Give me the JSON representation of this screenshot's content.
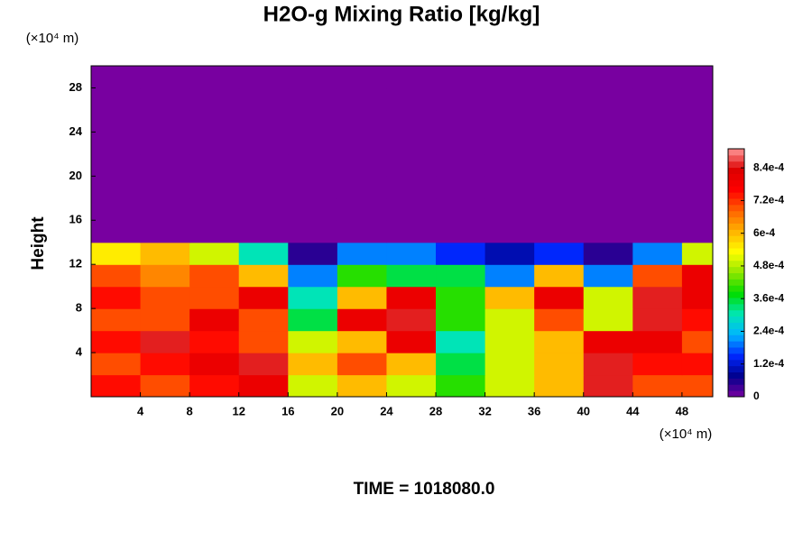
{
  "chart_data": {
    "type": "heatmap",
    "title": "H2O-g Mixing Ratio [kg/kg]",
    "y_label": "Height",
    "x_unit": "(×10⁴ m)",
    "y_unit": "(×10⁴ m)",
    "annotation": "TIME = 1018080.0",
    "x": [
      2,
      6,
      10,
      14,
      18,
      22,
      26,
      30,
      34,
      38,
      42,
      46,
      50
    ],
    "y": [
      1,
      3,
      5,
      7,
      9,
      11,
      13,
      15,
      17,
      19,
      21,
      23,
      25,
      27,
      29
    ],
    "z": [
      [
        0.00075,
        0.0007,
        0.00075,
        0.0008,
        0.0005,
        0.0006,
        0.0005,
        0.0004,
        0.0005,
        0.0006,
        0.00085,
        0.0007,
        0.0007
      ],
      [
        0.0007,
        0.00075,
        0.0008,
        0.00085,
        0.0006,
        0.0007,
        0.0006,
        0.00035,
        0.0005,
        0.0006,
        0.00085,
        0.00075,
        0.00075
      ],
      [
        0.00075,
        0.00085,
        0.00075,
        0.0007,
        0.0005,
        0.0006,
        0.0008,
        0.0003,
        0.0005,
        0.0006,
        0.0008,
        0.0008,
        0.0007
      ],
      [
        0.0007,
        0.0007,
        0.0008,
        0.0007,
        0.00035,
        0.0008,
        0.00085,
        0.0004,
        0.0005,
        0.0007,
        0.0005,
        0.00085,
        0.00075
      ],
      [
        0.00075,
        0.0007,
        0.0007,
        0.0008,
        0.0003,
        0.0006,
        0.0008,
        0.0004,
        0.0006,
        0.0008,
        0.0005,
        0.00085,
        0.0008
      ],
      [
        0.0007,
        0.00065,
        0.0007,
        0.0006,
        0.0002,
        0.0004,
        0.00035,
        0.00035,
        0.0002,
        0.0006,
        0.0002,
        0.0007,
        0.0008
      ],
      [
        0.00055,
        0.0006,
        0.0005,
        0.0003,
        5e-05,
        0.0002,
        0.0002,
        0.00015,
        0.0001,
        0.00015,
        5e-05,
        0.0002,
        0.0005
      ],
      [
        0,
        0,
        0,
        0,
        0,
        0,
        0,
        0,
        0,
        0,
        0,
        0,
        0
      ],
      [
        0,
        0,
        0,
        0,
        0,
        0,
        0,
        0,
        0,
        0,
        0,
        0,
        0
      ],
      [
        0,
        0,
        0,
        0,
        0,
        0,
        0,
        0,
        0,
        0,
        0,
        0,
        0
      ],
      [
        0,
        0,
        0,
        0,
        0,
        0,
        0,
        0,
        0,
        0,
        0,
        0,
        0
      ],
      [
        0,
        0,
        0,
        0,
        0,
        0,
        0,
        0,
        0,
        0,
        0,
        0,
        0
      ],
      [
        0,
        0,
        0,
        0,
        0,
        0,
        0,
        0,
        0,
        0,
        0,
        0,
        0
      ],
      [
        0,
        0,
        0,
        0,
        0,
        0,
        0,
        0,
        0,
        0,
        0,
        0,
        0
      ],
      [
        0,
        0,
        0,
        0,
        0,
        0,
        0,
        0,
        0,
        0,
        0,
        0,
        0
      ]
    ],
    "xlim": [
      0,
      50.5
    ],
    "ylim": [
      0,
      30
    ],
    "xticks": [
      4,
      8,
      12,
      16,
      20,
      24,
      28,
      32,
      36,
      40,
      44,
      48
    ],
    "yticks": [
      4,
      8,
      12,
      16,
      20,
      24,
      28
    ],
    "clim": [
      0,
      0.00091
    ],
    "cticks": [
      0,
      {
        "value": 0.00012,
        "label": "1.2e-4"
      },
      {
        "value": 0.00024,
        "label": "2.4e-4"
      },
      {
        "value": 0.00036,
        "label": "3.6e-4"
      },
      {
        "value": 0.00048,
        "label": "4.8e-4"
      },
      {
        "value": 0.0006,
        "label": "6e-4"
      },
      {
        "value": 0.00072,
        "label": "7.2e-4"
      },
      {
        "value": 0.00084,
        "label": "8.4e-4"
      }
    ],
    "colormap": [
      "#7800a0",
      "#00008c",
      "#0028ff",
      "#00b4ff",
      "#00e6b4",
      "#00dc00",
      "#8ce600",
      "#ffff00",
      "#ffb400",
      "#ff6400",
      "#ff0000",
      "#dc0000",
      "#ff9696"
    ]
  }
}
